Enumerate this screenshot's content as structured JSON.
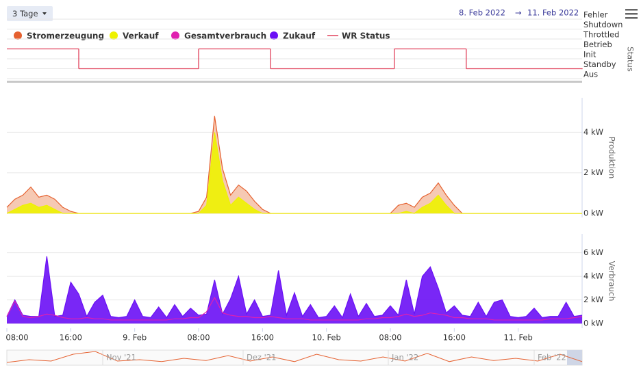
{
  "range_button": "3 Tage",
  "date_from": "8. Feb 2022",
  "date_arrow": "→",
  "date_to": "11. Feb 2022",
  "chart_data": [
    {
      "type": "step",
      "y_title": "Status",
      "y_categories": [
        "Fehler",
        "Shutdown",
        "Throttled",
        "Betrieb",
        "Init",
        "Standby",
        "Aus"
      ],
      "xlim": [
        8,
        80
      ],
      "series": [
        {
          "name": "WR Status",
          "color": "#e0405a",
          "x": [
            8,
            17,
            32,
            41,
            56.5,
            65.5,
            80
          ],
          "values": [
            "Betrieb",
            "Standby",
            "Betrieb",
            "Standby",
            "Betrieb",
            "Standby",
            "Standby"
          ]
        }
      ]
    },
    {
      "type": "area",
      "y_title": "Produktion",
      "xlim": [
        8,
        80
      ],
      "ylim": [
        -0.2,
        5.7
      ],
      "yticks": [
        {
          "value": 0,
          "label": "0 kW"
        },
        {
          "value": 2,
          "label": "2 kW"
        },
        {
          "value": 4,
          "label": "4 kW"
        }
      ],
      "grid": true,
      "x": [
        8,
        9,
        10,
        11,
        12,
        13,
        14,
        15,
        16,
        17,
        18,
        19,
        20,
        21,
        22,
        23,
        24,
        25,
        26,
        27,
        28,
        29,
        30,
        31,
        32,
        33,
        34,
        35,
        36,
        37,
        38,
        39,
        40,
        41,
        42,
        43,
        44,
        45,
        46,
        47,
        48,
        49,
        50,
        51,
        52,
        53,
        54,
        55,
        56,
        57,
        58,
        59,
        60,
        61,
        62,
        63,
        64,
        65,
        66,
        67,
        68,
        69,
        70,
        71,
        72,
        73,
        74,
        75,
        76,
        77,
        78,
        79,
        80
      ],
      "series": [
        {
          "name": "Stromerzeugung",
          "color": "#e5602f",
          "fill": "#f5c3ab",
          "values": [
            0.3,
            0.7,
            0.9,
            1.3,
            0.8,
            0.9,
            0.7,
            0.3,
            0.1,
            0,
            0,
            0,
            0,
            0,
            0,
            0,
            0,
            0,
            0,
            0,
            0,
            0,
            0,
            0,
            0.1,
            0.8,
            4.8,
            2.2,
            0.9,
            1.4,
            1.1,
            0.6,
            0.2,
            0,
            0,
            0,
            0,
            0,
            0,
            0,
            0,
            0,
            0,
            0,
            0,
            0,
            0,
            0,
            0,
            0.4,
            0.5,
            0.3,
            0.8,
            1.0,
            1.5,
            0.9,
            0.4,
            0,
            0,
            0,
            0,
            0,
            0,
            0,
            0,
            0,
            0,
            0,
            0,
            0,
            0,
            0,
            0
          ]
        },
        {
          "name": "Verkauf",
          "color": "#eef200",
          "fill": "#eef200",
          "values": [
            0,
            0.2,
            0.4,
            0.5,
            0.3,
            0.4,
            0.2,
            0,
            0,
            0,
            0,
            0,
            0,
            0,
            0,
            0,
            0,
            0,
            0,
            0,
            0,
            0,
            0,
            0,
            0,
            0.4,
            4.0,
            1.6,
            0.4,
            0.8,
            0.5,
            0.2,
            0,
            0,
            0,
            0,
            0,
            0,
            0,
            0,
            0,
            0,
            0,
            0,
            0,
            0,
            0,
            0,
            0,
            0,
            0.1,
            0,
            0.3,
            0.5,
            0.9,
            0.4,
            0,
            0,
            0,
            0,
            0,
            0,
            0,
            0,
            0,
            0,
            0,
            0,
            0,
            0,
            0,
            0,
            0
          ]
        }
      ]
    },
    {
      "type": "area",
      "y_title": "Verbrauch",
      "xlim": [
        8,
        80
      ],
      "ylim": [
        -0.4,
        7.6
      ],
      "yticks": [
        {
          "value": 0,
          "label": "0 kW"
        },
        {
          "value": 2,
          "label": "2 kW"
        },
        {
          "value": 4,
          "label": "4 kW"
        },
        {
          "value": 6,
          "label": "6 kW"
        }
      ],
      "xticks": [
        {
          "value": 8,
          "label": "08:00"
        },
        {
          "value": 16,
          "label": "16:00"
        },
        {
          "value": 24,
          "label": "9. Feb"
        },
        {
          "value": 32,
          "label": "08:00"
        },
        {
          "value": 40,
          "label": "16:00"
        },
        {
          "value": 48,
          "label": "10. Feb"
        },
        {
          "value": 56,
          "label": "08:00"
        },
        {
          "value": 64,
          "label": "16:00"
        },
        {
          "value": 72,
          "label": "11. Feb"
        }
      ],
      "grid": true,
      "x": [
        8,
        9,
        10,
        11,
        12,
        13,
        14,
        15,
        16,
        17,
        18,
        19,
        20,
        21,
        22,
        23,
        24,
        25,
        26,
        27,
        28,
        29,
        30,
        31,
        32,
        33,
        34,
        35,
        36,
        37,
        38,
        39,
        40,
        41,
        42,
        43,
        44,
        45,
        46,
        47,
        48,
        49,
        50,
        51,
        52,
        53,
        54,
        55,
        56,
        57,
        58,
        59,
        60,
        61,
        62,
        63,
        64,
        65,
        66,
        67,
        68,
        69,
        70,
        71,
        72,
        73,
        74,
        75,
        76,
        77,
        78,
        79,
        80
      ],
      "series": [
        {
          "name": "Zukauf",
          "color": "#6a10f5",
          "fill": "#6a10f5",
          "values": [
            0.6,
            2.0,
            0.7,
            0.6,
            0.6,
            5.7,
            0.6,
            0.7,
            3.5,
            2.5,
            0.6,
            1.8,
            2.4,
            0.6,
            0.5,
            0.6,
            2.0,
            0.6,
            0.5,
            1.4,
            0.5,
            1.6,
            0.6,
            1.3,
            0.7,
            0.8,
            3.7,
            0.8,
            2.1,
            4.0,
            0.8,
            2.0,
            0.6,
            0.7,
            4.5,
            0.7,
            2.6,
            0.6,
            1.6,
            0.5,
            0.6,
            1.5,
            0.5,
            2.5,
            0.6,
            1.7,
            0.6,
            0.7,
            1.5,
            0.7,
            3.7,
            0.8,
            4.0,
            4.8,
            3.0,
            0.9,
            1.5,
            0.7,
            0.6,
            1.8,
            0.6,
            1.8,
            2.0,
            0.6,
            0.5,
            0.6,
            1.3,
            0.5,
            0.6,
            0.6,
            1.8,
            0.6,
            0.7
          ]
        },
        {
          "name": "Gesamtverbrauch",
          "color": "#e020b0",
          "values": [
            0.6,
            1.9,
            0.6,
            0.5,
            0.6,
            0.8,
            0.7,
            0.5,
            0.4,
            0.4,
            0.5,
            0.4,
            0.4,
            0.3,
            0.3,
            0.3,
            0.3,
            0.3,
            0.3,
            0.3,
            0.3,
            0.4,
            0.4,
            0.5,
            0.5,
            1.0,
            2.2,
            0.9,
            0.7,
            0.6,
            0.6,
            0.5,
            0.5,
            0.6,
            0.5,
            0.4,
            0.4,
            0.4,
            0.3,
            0.3,
            0.3,
            0.3,
            0.3,
            0.3,
            0.3,
            0.4,
            0.4,
            0.5,
            0.5,
            0.6,
            0.8,
            0.6,
            0.7,
            0.9,
            0.8,
            0.7,
            0.5,
            0.5,
            0.4,
            0.4,
            0.4,
            0.3,
            0.3,
            0.3,
            0.3,
            0.3,
            0.3,
            0.3,
            0.4,
            0.4,
            0.4,
            0.5,
            0.6
          ]
        }
      ]
    }
  ],
  "navigator": {
    "labels": [
      "Nov '21",
      "Dez '21",
      "Jan '22",
      "Feb '22"
    ],
    "color": "#e5602f",
    "ylim": [
      0,
      5
    ],
    "values": [
      0.5,
      1.5,
      1.0,
      3.5,
      4.5,
      1.0,
      1.5,
      0.8,
      2.0,
      1.2,
      3.0,
      1.0,
      2.5,
      0.8,
      3.5,
      1.5,
      1.0,
      2.5,
      1.0,
      3.8,
      0.8,
      2.5,
      1.2,
      2.0,
      1.0,
      3.5,
      0.8
    ]
  }
}
